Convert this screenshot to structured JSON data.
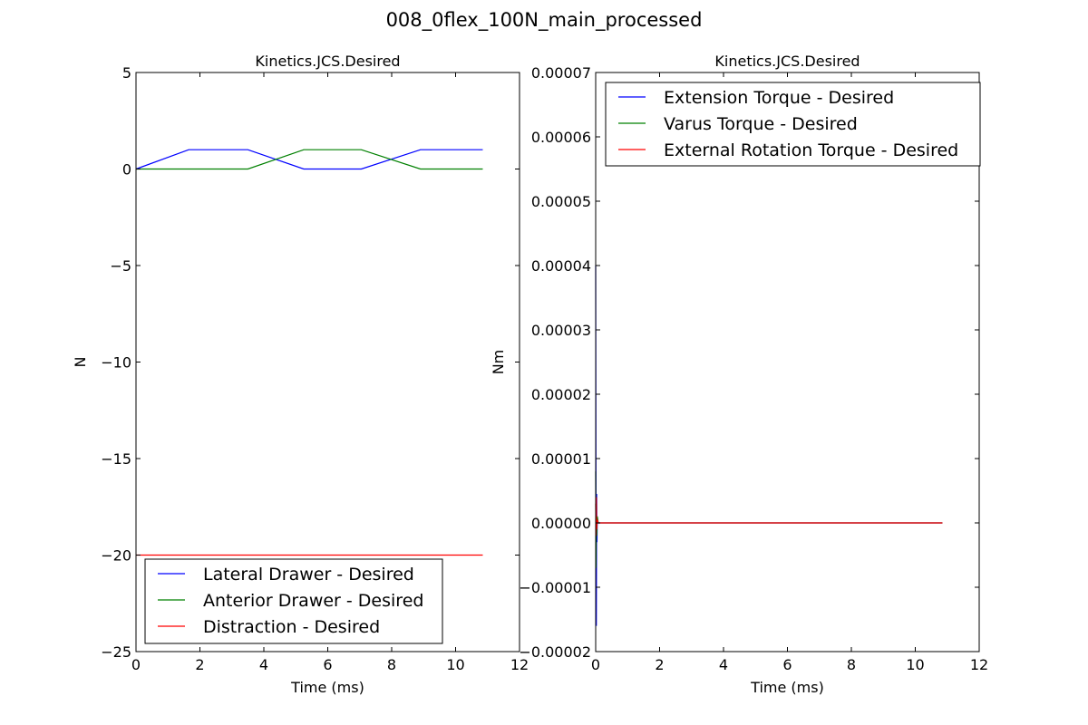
{
  "suptitle": "008_0flex_100N_main_processed",
  "chart_data": [
    {
      "type": "line",
      "title": "Kinetics.JCS.Desired",
      "xlabel": "Time (ms)",
      "ylabel": "N",
      "xlim": [
        0,
        12
      ],
      "ylim": [
        -25,
        5
      ],
      "xticks": [
        "0",
        "2",
        "4",
        "6",
        "8",
        "10",
        "12"
      ],
      "xtick_values": [
        0,
        2,
        4,
        6,
        8,
        10,
        12
      ],
      "yticks": [
        "5",
        "0",
        "−5",
        "−10",
        "−15",
        "−20",
        "−25"
      ],
      "ytick_values": [
        5,
        0,
        -5,
        -10,
        -15,
        -20,
        -25
      ],
      "legend_position": "lower-left",
      "series": [
        {
          "name": "Lateral Drawer - Desired",
          "color": "#0000ff",
          "x": [
            0,
            1.65,
            3.5,
            5.25,
            7.05,
            8.9,
            10.85
          ],
          "y": [
            0,
            1,
            1,
            0,
            0,
            1,
            1
          ]
        },
        {
          "name": "Anterior Drawer - Desired",
          "color": "#008000",
          "x": [
            0,
            3.5,
            5.25,
            7.05,
            8.9,
            10.85
          ],
          "y": [
            0,
            0,
            1,
            1,
            0,
            0
          ]
        },
        {
          "name": "Distraction - Desired",
          "color": "#ff0000",
          "x": [
            0,
            10.85
          ],
          "y": [
            -20,
            -20
          ]
        }
      ]
    },
    {
      "type": "line",
      "title": "Kinetics.JCS.Desired",
      "xlabel": "Time (ms)",
      "ylabel": "Nm",
      "xlim": [
        0,
        12
      ],
      "ylim": [
        -2e-05,
        7e-05
      ],
      "xticks": [
        "0",
        "2",
        "4",
        "6",
        "8",
        "10",
        "12"
      ],
      "xtick_values": [
        0,
        2,
        4,
        6,
        8,
        10,
        12
      ],
      "yticks": [
        "0.00007",
        "0.00006",
        "0.00005",
        "0.00004",
        "0.00003",
        "0.00002",
        "0.00001",
        "0.00000",
        "−0.00001",
        "−0.00002"
      ],
      "ytick_values": [
        7e-05,
        6e-05,
        5e-05,
        4e-05,
        3e-05,
        2e-05,
        1e-05,
        0,
        -1e-05,
        -2e-05
      ],
      "legend_position": "upper-right",
      "series": [
        {
          "name": "Extension Torque - Desired",
          "color": "#0000ff",
          "x": [
            0,
            0.01,
            0.02,
            0.03,
            0.04,
            0.05,
            0.07,
            0.1,
            10.85
          ],
          "y": [
            4e-05,
            0.0,
            -1.6e-05,
            4.5e-06,
            -3e-06,
            1e-06,
            0,
            0,
            0
          ]
        },
        {
          "name": "Varus Torque - Desired",
          "color": "#008000",
          "x": [
            0,
            0.01,
            0.02,
            0.03,
            0.05,
            0.08,
            10.85
          ],
          "y": [
            8e-06,
            -7e-06,
            3e-06,
            -2e-06,
            1e-06,
            0,
            0
          ]
        },
        {
          "name": "External Rotation Torque - Desired",
          "color": "#ff0000",
          "x": [
            0,
            0.01,
            0.02,
            0.03,
            0.05,
            0.08,
            10.85
          ],
          "y": [
            3e-06,
            -2e-06,
            4e-06,
            -1e-06,
            5e-07,
            0,
            0
          ]
        }
      ]
    }
  ]
}
